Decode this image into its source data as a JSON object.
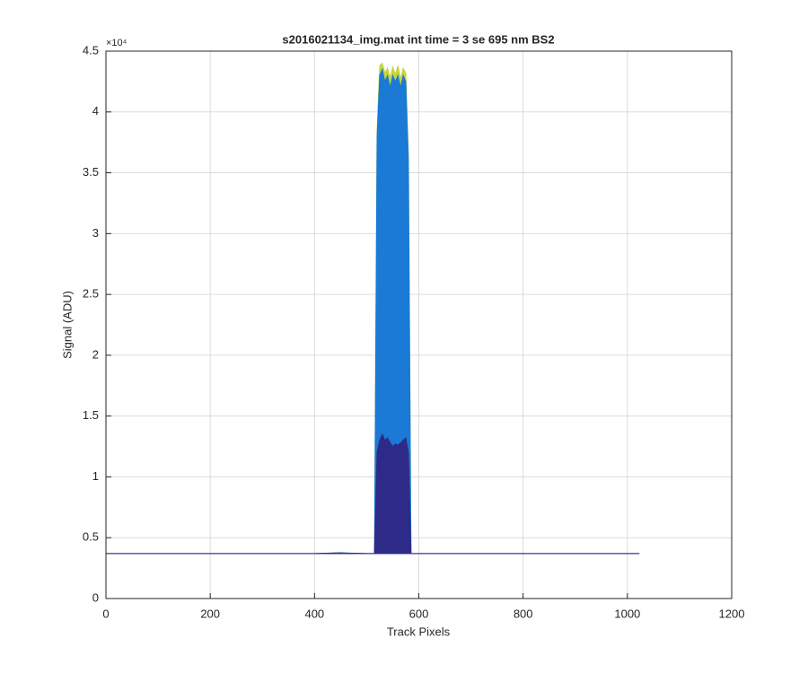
{
  "chart_data": {
    "type": "area",
    "title": "s2016021134_img.mat int time = 3 se  695 nm BS2",
    "xlabel": "Track Pixels",
    "ylabel": "Signal (ADU)",
    "y_multiplier": "×10⁴",
    "x": [
      0,
      100,
      200,
      300,
      400,
      450,
      500,
      515,
      520,
      525,
      530,
      535,
      540,
      545,
      550,
      555,
      560,
      565,
      570,
      575,
      580,
      585,
      600,
      700,
      800,
      900,
      1000,
      1023
    ],
    "series": [
      {
        "color": "#c8d43a",
        "values": [
          3700,
          3700,
          3700,
          3700,
          3700,
          3750,
          3700,
          3700,
          38500,
          43800,
          44000,
          43200,
          43600,
          42800,
          43700,
          43100,
          43800,
          42700,
          43600,
          43200,
          36500,
          3700,
          3700,
          3700,
          3700,
          3700,
          3700,
          3700
        ]
      },
      {
        "color": "#1a7ad6",
        "values": [
          3700,
          3700,
          3700,
          3700,
          3700,
          3750,
          3700,
          3700,
          38000,
          43000,
          43500,
          42500,
          43000,
          42000,
          43000,
          42500,
          43000,
          42000,
          43000,
          42500,
          36000,
          3700,
          3700,
          3700,
          3700,
          3700,
          3700,
          3700
        ]
      },
      {
        "color": "#2e2a87",
        "values": [
          3700,
          3700,
          3700,
          3700,
          3700,
          3750,
          3700,
          3700,
          12000,
          13000,
          13500,
          13000,
          13200,
          12800,
          12500,
          12700,
          12600,
          12800,
          13000,
          13200,
          12000,
          3700,
          3700,
          3700,
          3700,
          3700,
          3700,
          3700
        ]
      }
    ],
    "xlim": [
      0,
      1200
    ],
    "xticks": [
      0,
      200,
      400,
      600,
      800,
      1000,
      1200
    ],
    "ylim": [
      0,
      45000
    ],
    "yticks": [
      0,
      {
        "value": 5000,
        "label": "0.5"
      },
      {
        "value": 10000,
        "label": "1"
      },
      {
        "value": 15000,
        "label": "1.5"
      },
      {
        "value": 20000,
        "label": "2"
      },
      {
        "value": 25000,
        "label": "2.5"
      },
      {
        "value": 30000,
        "label": "3"
      },
      {
        "value": 35000,
        "label": "3.5"
      },
      {
        "value": 40000,
        "label": "4"
      },
      {
        "value": 45000,
        "label": "4.5"
      }
    ],
    "grid": true
  }
}
